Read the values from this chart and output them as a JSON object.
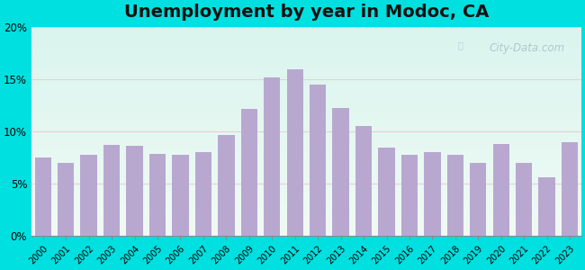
{
  "title": "Unemployment by year in Modoc, CA",
  "years": [
    2000,
    2001,
    2002,
    2003,
    2004,
    2005,
    2006,
    2007,
    2008,
    2009,
    2010,
    2011,
    2012,
    2013,
    2014,
    2015,
    2016,
    2017,
    2018,
    2019,
    2020,
    2021,
    2022,
    2023
  ],
  "values": [
    7.5,
    7.0,
    7.8,
    8.7,
    8.6,
    7.9,
    7.8,
    8.0,
    9.7,
    12.2,
    15.2,
    16.0,
    14.5,
    12.3,
    10.5,
    8.5,
    7.8,
    8.0,
    7.8,
    7.0,
    8.8,
    7.0,
    5.6,
    9.0
  ],
  "bar_color": "#b8a8d0",
  "outer_bg_color": "#00e0e0",
  "ylim": [
    0,
    20
  ],
  "yticks": [
    0,
    5,
    10,
    15,
    20
  ],
  "ytick_labels": [
    "0%",
    "5%",
    "10%",
    "15%",
    "20%"
  ],
  "title_fontsize": 14,
  "watermark_text": "City-Data.com",
  "grid_color": "#dddddd",
  "inner_bg_top": "#c8efe8",
  "inner_bg_bottom": "#eefaee"
}
